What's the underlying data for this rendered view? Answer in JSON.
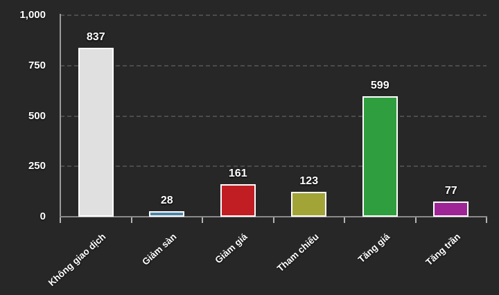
{
  "chart_data": {
    "type": "bar",
    "title": "",
    "xlabel": "",
    "ylabel": "",
    "categories": [
      "Không giao dịch",
      "Giảm sàn",
      "Giảm giá",
      "Tham chiếu",
      "Tăng giá",
      "Tăng trần"
    ],
    "values": [
      837,
      28,
      161,
      123,
      599,
      77
    ],
    "value_labels": [
      "837",
      "28",
      "161",
      "123",
      "599",
      "77"
    ],
    "bar_colors": [
      "#e0e0e0",
      "#4f85a5",
      "#c11e24",
      "#a3a437",
      "#2f9e3e",
      "#9d2596"
    ],
    "ylim": [
      0,
      1000
    ],
    "yticks": [
      {
        "value": 0,
        "label": "0"
      },
      {
        "value": 250,
        "label": "250"
      },
      {
        "value": 500,
        "label": "500"
      },
      {
        "value": 750,
        "label": "750"
      },
      {
        "value": 1000,
        "label": "1,000"
      }
    ],
    "grid": "horizontal-dashed",
    "legend": "none",
    "colors": {
      "background": "#272727",
      "grid_line": "#4c4c4c",
      "axis_line": "#9c9c9c",
      "base_line": "#8a8a8a",
      "tick_mark": "#b5b5b5",
      "label_text": "#ffffff",
      "bar_border": "#ffffff"
    }
  }
}
